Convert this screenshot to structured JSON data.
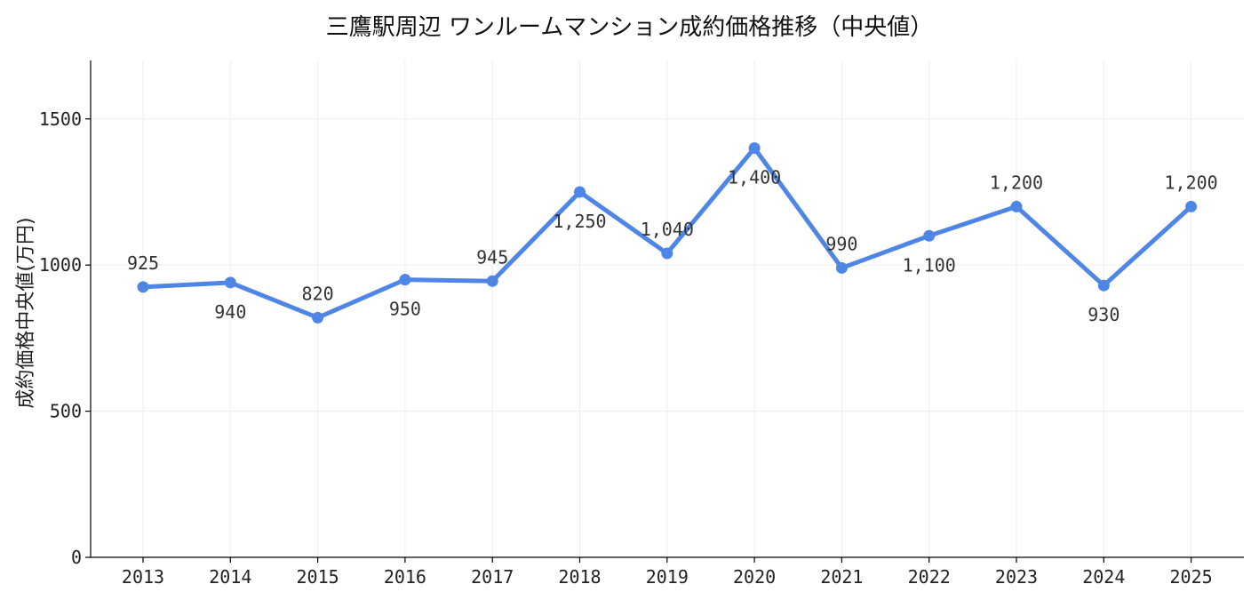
{
  "chart_data": {
    "type": "line",
    "title": "三鷹駅周辺 ワンルームマンション成約価格推移（中央値）",
    "xlabel": "",
    "ylabel": "成約価格中央値(万円)",
    "categories": [
      "2013",
      "2014",
      "2015",
      "2016",
      "2017",
      "2018",
      "2019",
      "2020",
      "2021",
      "2022",
      "2023",
      "2024",
      "2025"
    ],
    "series": [
      {
        "values": [
          925,
          940,
          820,
          950,
          945,
          1250,
          1040,
          1400,
          990,
          1100,
          1200,
          930,
          1200
        ]
      }
    ],
    "data_labels": [
      "925",
      "940",
      "820",
      "950",
      "945",
      "1,250",
      "1,040",
      "1,400",
      "990",
      "1,100",
      "1,200",
      "930",
      "1,200"
    ],
    "label_placement": [
      "above",
      "below",
      "above",
      "below",
      "above",
      "below",
      "above",
      "below",
      "above",
      "below",
      "above",
      "below",
      "above"
    ],
    "yticks": [
      0,
      500,
      1000,
      1500
    ],
    "ylim": [
      0,
      1700
    ],
    "grid": true,
    "line_color": "#4f86e6",
    "grid_color": "#eeeeee",
    "axis_color": "#000000"
  }
}
